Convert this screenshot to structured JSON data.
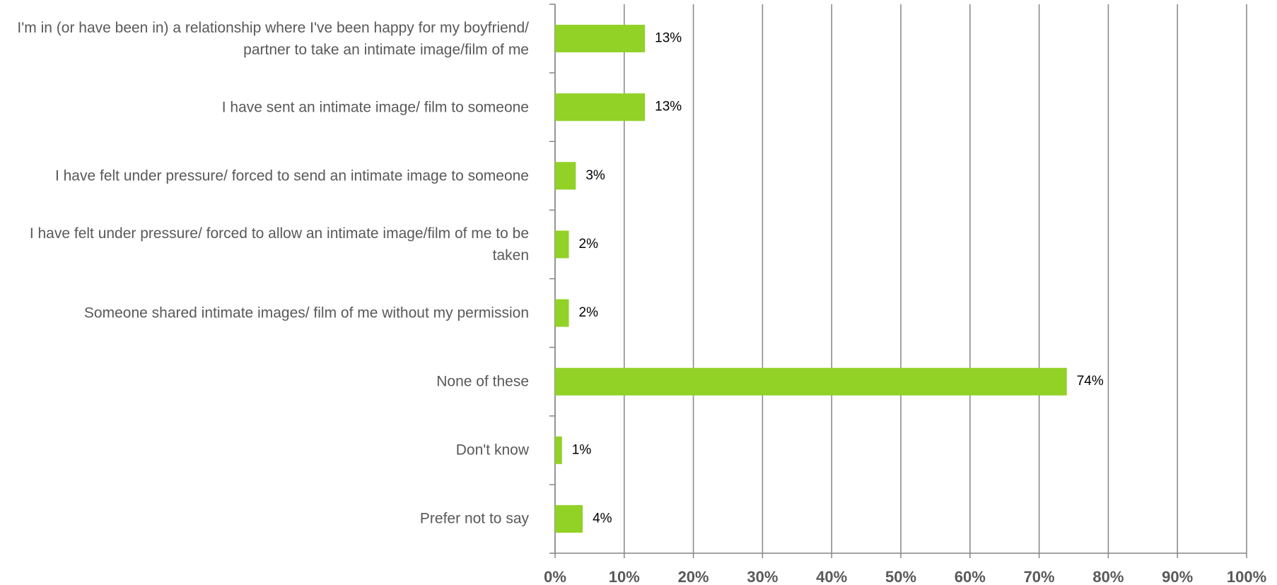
{
  "chart_data": {
    "type": "bar",
    "orientation": "horizontal",
    "categories": [
      "I'm in (or have been in) a relationship where I've been happy for my boyfriend/ partner to take an intimate image/film of me",
      "I have sent an intimate image/ film to someone",
      "I have felt under pressure/ forced to send an intimate image to someone",
      "I have felt under pressure/ forced to allow an intimate image/film of me to be taken",
      "Someone shared intimate images/ film of me without my permission",
      "None of these",
      "Don't know",
      "Prefer not to say"
    ],
    "values": [
      13,
      13,
      3,
      2,
      2,
      74,
      1,
      4
    ],
    "value_labels": [
      "13%",
      "13%",
      "3%",
      "2%",
      "2%",
      "74%",
      "1%",
      "4%"
    ],
    "color": "#92d125",
    "xlim": [
      0,
      100
    ],
    "xticks": [
      {
        "value": 0,
        "label": "0%"
      },
      {
        "value": 10,
        "label": "10%"
      },
      {
        "value": 20,
        "label": "20%"
      },
      {
        "value": 30,
        "label": "30%"
      },
      {
        "value": 40,
        "label": "40%"
      },
      {
        "value": 50,
        "label": "50%"
      },
      {
        "value": 60,
        "label": "60%"
      },
      {
        "value": 70,
        "label": "70%"
      },
      {
        "value": 80,
        "label": "80%"
      },
      {
        "value": 90,
        "label": "90%"
      },
      {
        "value": 100,
        "label": "100%"
      }
    ],
    "grid": true
  }
}
